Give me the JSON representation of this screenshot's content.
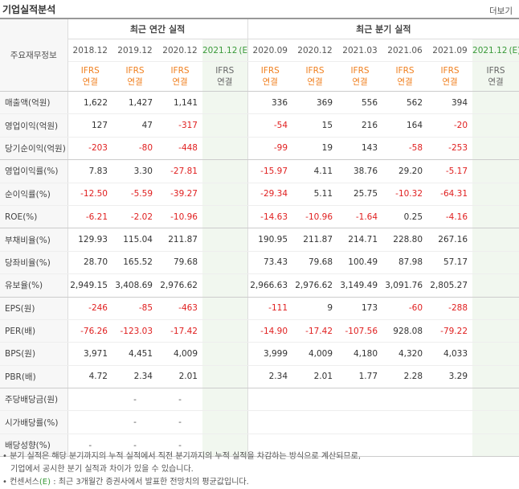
{
  "header": {
    "title": "기업실적분석",
    "more": "더보기"
  },
  "label_head": "주요재무정보",
  "group_annual": "최근 연간 실적",
  "group_quarter": "최근 분기 실적",
  "ifrs_line1": "IFRS",
  "ifrs_line2": "연결",
  "columns": [
    {
      "period": "2018.12",
      "est": false
    },
    {
      "period": "2019.12",
      "est": false
    },
    {
      "period": "2020.12",
      "est": false
    },
    {
      "period": "2021.12",
      "est": true
    },
    {
      "period": "2020.09",
      "est": false
    },
    {
      "period": "2020.12",
      "est": false
    },
    {
      "period": "2021.03",
      "est": false
    },
    {
      "period": "2021.06",
      "est": false
    },
    {
      "period": "2021.09",
      "est": false
    },
    {
      "period": "2021.12",
      "est": true
    }
  ],
  "est_mark": "(E)",
  "rows": [
    {
      "label": "매출액(억원)",
      "values": [
        "1,622",
        "1,427",
        "1,141",
        "",
        "336",
        "369",
        "556",
        "562",
        "394",
        ""
      ]
    },
    {
      "label": "영업이익(억원)",
      "values": [
        "127",
        "47",
        "-317",
        "",
        "-54",
        "15",
        "216",
        "164",
        "-20",
        ""
      ]
    },
    {
      "label": "당기순이익(억원)",
      "values": [
        "-203",
        "-80",
        "-448",
        "",
        "-99",
        "19",
        "143",
        "-58",
        "-253",
        ""
      ]
    },
    {
      "label": "영업이익률(%)",
      "values": [
        "7.83",
        "3.30",
        "-27.81",
        "",
        "-15.97",
        "4.11",
        "38.76",
        "29.20",
        "-5.17",
        ""
      ]
    },
    {
      "label": "순이익률(%)",
      "values": [
        "-12.50",
        "-5.59",
        "-39.27",
        "",
        "-29.34",
        "5.11",
        "25.75",
        "-10.32",
        "-64.31",
        ""
      ]
    },
    {
      "label": "ROE(%)",
      "values": [
        "-6.21",
        "-2.02",
        "-10.96",
        "",
        "-14.63",
        "-10.96",
        "-1.64",
        "0.25",
        "-4.16",
        ""
      ]
    },
    {
      "label": "부채비율(%)",
      "values": [
        "129.93",
        "115.04",
        "211.87",
        "",
        "190.95",
        "211.87",
        "214.71",
        "228.80",
        "267.16",
        ""
      ]
    },
    {
      "label": "당좌비율(%)",
      "values": [
        "28.70",
        "165.52",
        "79.68",
        "",
        "73.43",
        "79.68",
        "100.49",
        "87.98",
        "57.17",
        ""
      ]
    },
    {
      "label": "유보율(%)",
      "values": [
        "2,949.15",
        "3,408.69",
        "2,976.62",
        "",
        "2,966.63",
        "2,976.62",
        "3,149.49",
        "3,091.76",
        "2,805.27",
        ""
      ]
    },
    {
      "label": "EPS(원)",
      "values": [
        "-246",
        "-85",
        "-463",
        "",
        "-111",
        "9",
        "173",
        "-60",
        "-288",
        ""
      ]
    },
    {
      "label": "PER(배)",
      "values": [
        "-76.26",
        "-123.03",
        "-17.42",
        "",
        "-14.90",
        "-17.42",
        "-107.56",
        "928.08",
        "-79.22",
        ""
      ]
    },
    {
      "label": "BPS(원)",
      "values": [
        "3,971",
        "4,451",
        "4,009",
        "",
        "3,999",
        "4,009",
        "4,180",
        "4,320",
        "4,033",
        ""
      ]
    },
    {
      "label": "PBR(배)",
      "values": [
        "4.72",
        "2.34",
        "2.01",
        "",
        "2.34",
        "2.01",
        "1.77",
        "2.28",
        "3.29",
        ""
      ]
    },
    {
      "label": "주당배당금(원)",
      "values": [
        "",
        "-",
        "-",
        "",
        "",
        "",
        "",
        "",
        "",
        ""
      ]
    },
    {
      "label": "시가배당률(%)",
      "values": [
        "",
        "-",
        "-",
        "",
        "",
        "",
        "",
        "",
        "",
        ""
      ]
    },
    {
      "label": "배당성향(%)",
      "values": [
        "-",
        "-",
        "-",
        "",
        "",
        "",
        "",
        "",
        "",
        ""
      ]
    }
  ],
  "notes": {
    "line1": "• 분기 실적은 해당 분기까지의 누적 실적에서 직전 분기까지의 누적 실적을 차감하는 방식으로 계산되므로,",
    "line2": "기업에서 공시한 분기 실적과 차이가 있을 수 있습니다.",
    "line3_prefix": "• 컨센서스",
    "line3_mark": "(E)",
    "line3_suffix": " : 최근 3개월간 증권사에서 발표한 전망치의 평균값입니다."
  }
}
